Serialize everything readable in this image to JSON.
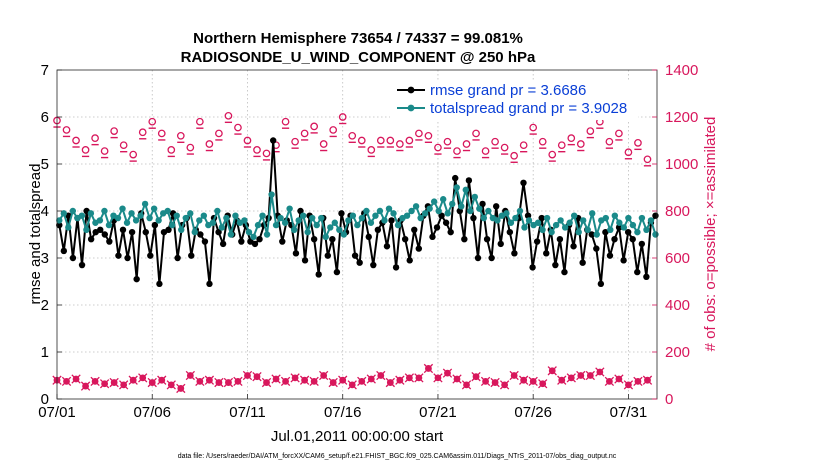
{
  "chart_data": {
    "type": "line",
    "title": "Northern Hemisphere 73654 / 74337 = 99.081%",
    "subtitle": "RADIOSONDE_U_WIND_COMPONENT @ 250 hPa",
    "xlabel": "Jul.01,2011 00:00:00 start",
    "ylabel": "rmse and totalspread",
    "y2label": "# of obs: o=possible; ×=assimilated",
    "xlim": [
      0,
      31.5
    ],
    "ylim": [
      0,
      7
    ],
    "y2lim": [
      0,
      1400
    ],
    "x_ticks": [
      0,
      5,
      10,
      15,
      20,
      25,
      30
    ],
    "x_tick_labels": [
      "07/01",
      "07/06",
      "07/11",
      "07/16",
      "07/21",
      "07/26",
      "07/31"
    ],
    "y_ticks": [
      "0",
      "1",
      "2",
      "3",
      "4",
      "5",
      "6",
      "7"
    ],
    "y2_ticks": [
      "0",
      "200",
      "400",
      "600",
      "800",
      "1000",
      "1200",
      "1400"
    ],
    "colors": {
      "rmse": "#000000",
      "spread": "#1a8a8a",
      "obs": "#d8175c",
      "legend_text": "#0a3fd6"
    },
    "series": [
      {
        "name": "rmse grand pr = 3.6686",
        "axis": "left",
        "values": [
          3.7,
          3.15,
          3.9,
          3.0,
          3.85,
          2.85,
          4.0,
          3.4,
          3.55,
          3.6,
          3.5,
          3.35,
          3.8,
          3.05,
          3.6,
          3.0,
          3.55,
          2.55,
          3.95,
          3.55,
          3.05,
          3.7,
          2.45,
          3.55,
          3.6,
          3.95,
          3.0,
          3.7,
          3.85,
          3.05,
          3.6,
          3.5,
          3.35,
          2.45,
          3.85,
          3.55,
          3.3,
          3.9,
          3.5,
          3.8,
          3.35,
          3.7,
          3.35,
          3.3,
          3.4,
          3.7,
          3.85,
          5.5,
          3.9,
          3.35,
          3.8,
          3.7,
          3.1,
          4.0,
          2.95,
          3.9,
          3.4,
          2.65,
          3.85,
          3.05,
          3.4,
          2.7,
          3.95,
          3.55,
          3.9,
          3.05,
          2.9,
          3.95,
          3.45,
          2.85,
          3.6,
          3.75,
          3.25,
          3.8,
          2.8,
          3.8,
          3.4,
          2.95,
          3.6,
          3.2,
          3.9,
          4.1,
          3.45,
          3.65,
          3.9,
          3.75,
          3.55,
          4.7,
          4.0,
          3.4,
          4.65,
          3.85,
          3.0,
          4.15,
          3.4,
          3.0,
          4.1,
          3.3,
          4.0,
          3.55,
          3.1,
          3.85,
          4.6,
          3.9,
          2.8,
          3.35,
          3.85,
          3.1,
          3.6,
          2.85,
          3.4,
          2.7,
          3.7,
          3.25,
          3.85,
          2.9,
          3.6,
          3.5,
          3.2,
          2.45,
          3.55,
          3.05,
          3.4,
          3.65,
          2.95,
          3.55,
          3.4,
          2.7,
          3.3,
          2.6,
          3.75,
          3.9
        ],
        "marker": "filled-circle"
      },
      {
        "name": "totalspread grand pr = 3.9028",
        "axis": "left",
        "values": [
          3.8,
          3.95,
          3.65,
          4.0,
          3.85,
          3.9,
          3.6,
          3.95,
          3.75,
          3.8,
          4.0,
          3.7,
          3.9,
          3.85,
          4.05,
          3.75,
          3.95,
          3.8,
          3.9,
          4.15,
          3.85,
          4.05,
          3.8,
          3.95,
          4.0,
          3.7,
          3.9,
          3.6,
          3.85,
          3.95,
          3.55,
          3.8,
          3.9,
          3.7,
          3.75,
          4.0,
          3.65,
          3.85,
          3.5,
          3.9,
          3.75,
          3.8,
          3.55,
          3.45,
          3.7,
          3.9,
          3.5,
          4.35,
          3.7,
          3.85,
          3.75,
          4.05,
          3.6,
          3.8,
          3.9,
          3.55,
          3.85,
          3.7,
          3.85,
          3.45,
          3.65,
          3.75,
          3.6,
          3.5,
          3.8,
          3.9,
          3.7,
          3.85,
          4.0,
          3.75,
          3.9,
          4.0,
          3.8,
          4.05,
          3.95,
          3.7,
          3.85,
          3.9,
          4.0,
          4.1,
          3.85,
          3.95,
          4.05,
          4.2,
          4.0,
          4.25,
          3.95,
          4.15,
          4.5,
          4.1,
          4.45,
          4.0,
          4.3,
          4.05,
          3.85,
          4.0,
          3.85,
          3.8,
          3.9,
          3.95,
          3.75,
          3.85,
          4.0,
          3.65,
          3.8,
          3.7,
          3.75,
          3.6,
          3.85,
          3.55,
          3.7,
          3.8,
          3.65,
          3.75,
          3.9,
          3.55,
          3.8,
          3.6,
          3.95,
          3.5,
          3.8,
          3.85,
          3.6,
          3.9,
          3.75,
          3.65,
          3.85,
          3.7,
          3.55,
          3.85,
          3.6,
          3.8,
          3.5
        ],
        "marker": "filled-circle"
      },
      {
        "name": "obs possible",
        "axis": "right",
        "x": [
          0,
          0.5,
          1,
          1.5,
          2,
          2.5,
          3,
          3.5,
          4,
          4.5,
          5,
          5.5,
          6,
          6.5,
          7,
          7.5,
          8,
          8.5,
          9,
          9.5,
          10,
          10.5,
          11,
          11.5,
          12,
          12.5,
          13,
          13.5,
          14,
          14.5,
          15,
          15.5,
          16,
          16.5,
          17,
          17.5,
          18,
          18.5,
          19,
          19.5,
          20,
          20.5,
          21,
          21.5,
          22,
          22.5,
          23,
          23.5,
          24,
          24.5,
          25,
          25.5,
          26,
          26.5,
          27,
          27.5,
          28,
          28.5,
          29,
          29.5,
          30,
          30.5,
          31
        ],
        "values": [
          1185,
          1145,
          1100,
          1060,
          1110,
          1055,
          1140,
          1080,
          1040,
          1135,
          1180,
          1130,
          1060,
          1120,
          1070,
          1180,
          1085,
          1130,
          1205,
          1155,
          1100,
          1060,
          1045,
          1080,
          1180,
          1095,
          1130,
          1160,
          1085,
          1145,
          1200,
          1120,
          1100,
          1060,
          1100,
          1100,
          1085,
          1100,
          1130,
          1120,
          1070,
          1095,
          1055,
          1085,
          1130,
          1055,
          1095,
          1070,
          1035,
          1080,
          1155,
          1095,
          1040,
          1080,
          1110,
          1085,
          1140,
          1180,
          1095,
          1130,
          1050,
          1090,
          1020
        ],
        "marker": "open-circle"
      },
      {
        "name": "obs assimilated",
        "axis": "right",
        "x": [
          0,
          0.5,
          1,
          1.5,
          2,
          2.5,
          3,
          3.5,
          4,
          4.5,
          5,
          5.5,
          6,
          6.5,
          7,
          7.5,
          8,
          8.5,
          9,
          9.5,
          10,
          10.5,
          11,
          11.5,
          12,
          12.5,
          13,
          13.5,
          14,
          14.5,
          15,
          15.5,
          16,
          16.5,
          17,
          17.5,
          18,
          18.5,
          19,
          19.5,
          20,
          20.5,
          21,
          21.5,
          22,
          22.5,
          23,
          23.5,
          24,
          24.5,
          25,
          25.5,
          26,
          26.5,
          27,
          27.5,
          28,
          28.5,
          29,
          29.5,
          30,
          30.5,
          31
        ],
        "values": [
          80,
          75,
          85,
          55,
          75,
          65,
          70,
          60,
          80,
          90,
          70,
          80,
          60,
          45,
          100,
          75,
          80,
          70,
          70,
          75,
          100,
          95,
          70,
          85,
          75,
          90,
          80,
          75,
          100,
          70,
          80,
          60,
          75,
          85,
          100,
          70,
          80,
          90,
          90,
          130,
          90,
          110,
          85,
          60,
          95,
          75,
          70,
          60,
          100,
          80,
          75,
          65,
          120,
          80,
          90,
          100,
          100,
          115,
          75,
          85,
          60,
          75,
          80
        ],
        "marker": "cross-circle"
      }
    ]
  },
  "legend": {
    "rmse": "rmse grand pr = 3.6686",
    "spread": "totalspread grand pr = 3.9028"
  },
  "footnote": "data file: /Users/raeder/DAI/ATM_forcXX/CAM6_setup/f.e21.FHIST_BGC.f09_025.CAM6assim.011/Diags_NTrS_2011-07/obs_diag_output.nc"
}
